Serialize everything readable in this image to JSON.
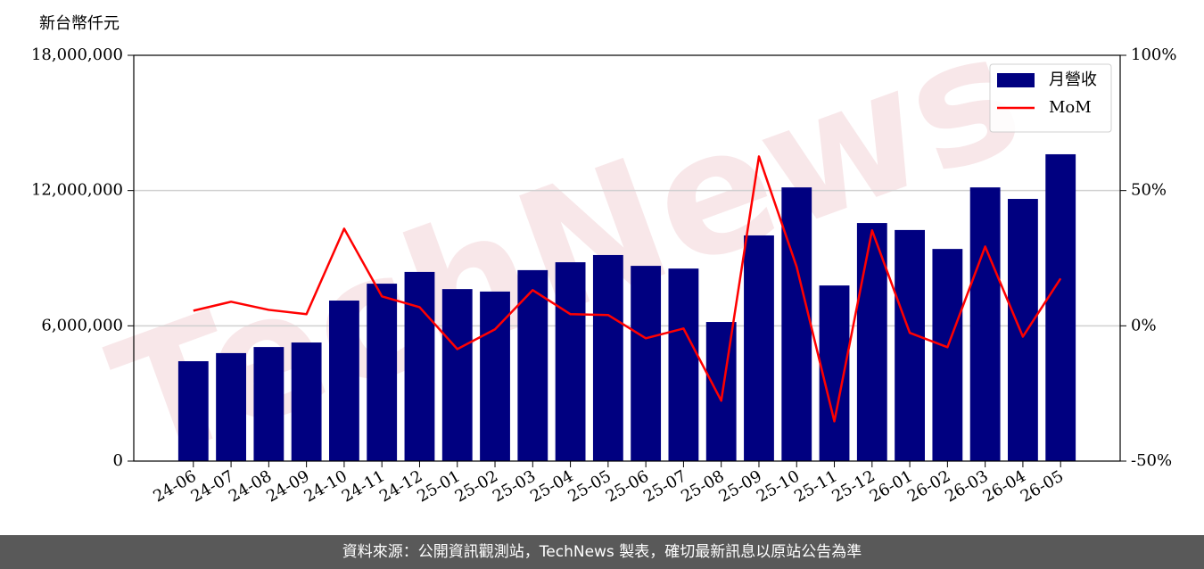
{
  "chart_data": {
    "type": "bar-line",
    "watermark": "TechNews",
    "y_label": "新台幣仟元",
    "source": "資料來源：公開資訊觀測站，TechNews 製表，確切最新訊息以原站公告為準",
    "categories": [
      "24-06",
      "24-07",
      "24-08",
      "24-09",
      "24-10",
      "24-11",
      "24-12",
      "25-01",
      "25-02",
      "25-03",
      "25-04",
      "25-05",
      "25-06",
      "25-07",
      "25-08",
      "25-09",
      "25-10",
      "25-11",
      "25-12",
      "26-01",
      "26-02",
      "26-03",
      "26-04",
      "26-05"
    ],
    "series": [
      {
        "name": "月營收",
        "type": "bar",
        "color": "#000080",
        "values": [
          4430000,
          4790000,
          5060000,
          5260000,
          7120000,
          7870000,
          8390000,
          7630000,
          7520000,
          8470000,
          8820000,
          9140000,
          8660000,
          8540000,
          6170000,
          10010000,
          12140000,
          7790000,
          10560000,
          10250000,
          9410000,
          12140000,
          11630000,
          13610000
        ]
      },
      {
        "name": "MoM",
        "type": "line",
        "axis": "y2",
        "color": "#ff0000",
        "values": [
          5.6,
          8.9,
          5.9,
          4.3,
          35.9,
          10.9,
          6.9,
          -8.6,
          -1.3,
          13.2,
          4.3,
          4.0,
          -4.6,
          -1.0,
          -27.7,
          62.6,
          21.8,
          -35.3,
          35.3,
          -2.6,
          -7.9,
          29.3,
          -4.0,
          17.5
        ]
      }
    ],
    "ylim": [
      0,
      18000000
    ],
    "yticks": [
      0,
      {
        "value": 6000000,
        "label": "6,000,000"
      },
      {
        "value": 12000000,
        "label": "12,000,000"
      },
      {
        "value": 18000000,
        "label": "18,000,000"
      }
    ],
    "y2lim": [
      -50,
      100
    ],
    "y2ticks": [
      {
        "value": -50,
        "label": "-50%"
      },
      {
        "value": 0,
        "label": "0%"
      },
      {
        "value": 50,
        "label": "50%"
      },
      {
        "value": 100,
        "label": "100%"
      }
    ],
    "grid": true,
    "legend": "upper right"
  }
}
